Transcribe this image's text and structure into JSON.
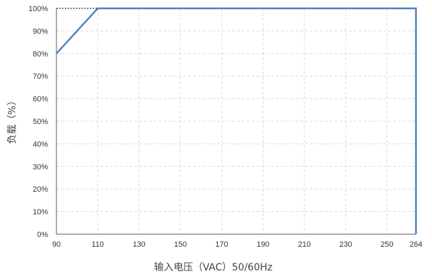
{
  "chart_data": {
    "type": "line",
    "title": "",
    "xlabel": "输入电压（VAC）50/60Hz",
    "ylabel": "负载（%）",
    "xlim": [
      90,
      264
    ],
    "ylim": [
      0,
      100
    ],
    "x_ticks": [
      90,
      110,
      130,
      150,
      170,
      190,
      210,
      230,
      250,
      264
    ],
    "y_ticks": [
      0,
      10,
      20,
      30,
      40,
      50,
      60,
      70,
      80,
      90,
      100
    ],
    "x_tick_labels": [
      "90",
      "110",
      "130",
      "150",
      "170",
      "190",
      "210",
      "230",
      "250",
      "264"
    ],
    "y_tick_labels": [
      "0%",
      "10%",
      "20%",
      "30%",
      "40%",
      "50%",
      "60%",
      "70%",
      "80%",
      "90%",
      "100%"
    ],
    "grid": true,
    "series": [
      {
        "x": [
          90,
          110,
          264,
          264
        ],
        "y": [
          80,
          100,
          100,
          0
        ]
      }
    ],
    "reference_lines": [
      {
        "style": "dashed",
        "x": [
          90,
          110
        ],
        "y": [
          100,
          100
        ]
      }
    ],
    "colors": {
      "series": "#4f81bd",
      "grid": "#d9d9d9",
      "axis": "#595959",
      "reference": "#000000"
    }
  }
}
